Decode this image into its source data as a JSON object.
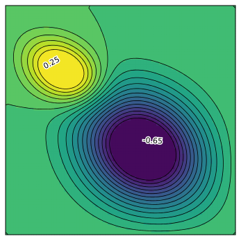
{
  "chart_data": {
    "type": "contour",
    "title": "",
    "xlabel": "",
    "ylabel": "",
    "colormap": "viridis",
    "field_range": [
      -0.7,
      0.28
    ],
    "contour_levels": [
      -0.65,
      -0.6,
      -0.55,
      -0.5,
      -0.45,
      -0.4,
      -0.35,
      -0.3,
      -0.25,
      -0.2,
      -0.15,
      -0.1,
      -0.05,
      0.0,
      0.05,
      0.1,
      0.15,
      0.2,
      0.25
    ],
    "extrema": [
      {
        "kind": "max",
        "value": 0.27,
        "x": 0.24,
        "y": 0.72
      },
      {
        "kind": "min",
        "value": -0.7,
        "x": 0.61,
        "y": 0.36
      },
      {
        "kind": "min",
        "value": -0.05,
        "x": 0.07,
        "y": 0.1
      }
    ],
    "labels": [
      {
        "text": "0.25",
        "value": 0.25
      },
      {
        "text": "-0.65",
        "value": -0.65
      }
    ],
    "grid": false,
    "legend": "none"
  }
}
